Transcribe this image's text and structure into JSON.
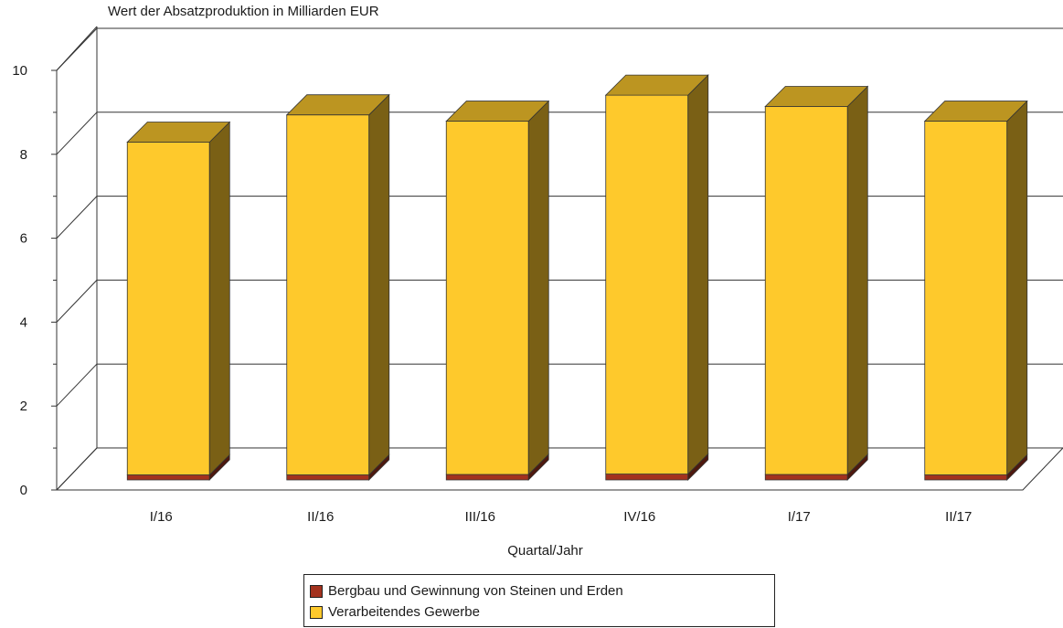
{
  "chart_data": {
    "type": "bar",
    "stacked": true,
    "three_d": true,
    "title": "",
    "ylabel": "Wert der Absatzproduktion in Milliarden EUR",
    "xlabel": "Quartal/Jahr",
    "ylim": [
      0,
      10
    ],
    "yticks": [
      0,
      2,
      4,
      6,
      8,
      10
    ],
    "grid": true,
    "legend_position": "bottom",
    "categories": [
      "I/16",
      "II/16",
      "III/16",
      "IV/16",
      "I/17",
      "II/17"
    ],
    "series": [
      {
        "name": "Bergbau und Gewinnung von Steinen und Erden",
        "color": "#a3321e",
        "values": [
          0.12,
          0.12,
          0.13,
          0.14,
          0.13,
          0.12
        ]
      },
      {
        "name": "Verarbeitendes Gewerbe",
        "color": "#fec92c",
        "values": [
          7.93,
          8.58,
          8.42,
          9.03,
          8.77,
          8.43
        ]
      }
    ]
  }
}
